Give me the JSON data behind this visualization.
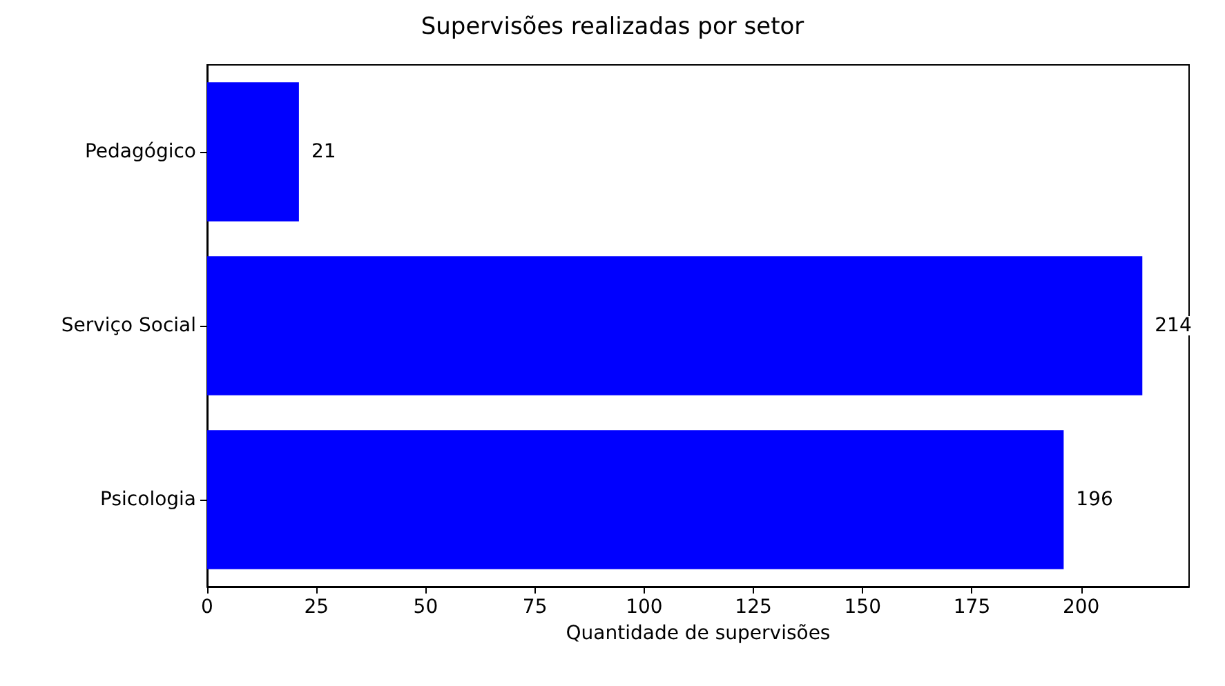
{
  "chart_data": {
    "type": "bar",
    "orientation": "horizontal",
    "title": "Supervisões realizadas por setor",
    "xlabel": "Quantidade de supervisões",
    "categories": [
      "Pedagógico",
      "Serviço Social",
      "Psicologia"
    ],
    "values": [
      21,
      214,
      196
    ],
    "color": "#0000ff",
    "xlim": [
      0,
      224.7
    ],
    "xticks": [
      0,
      25,
      50,
      75,
      100,
      125,
      150,
      175,
      200
    ],
    "data_labels": true
  }
}
